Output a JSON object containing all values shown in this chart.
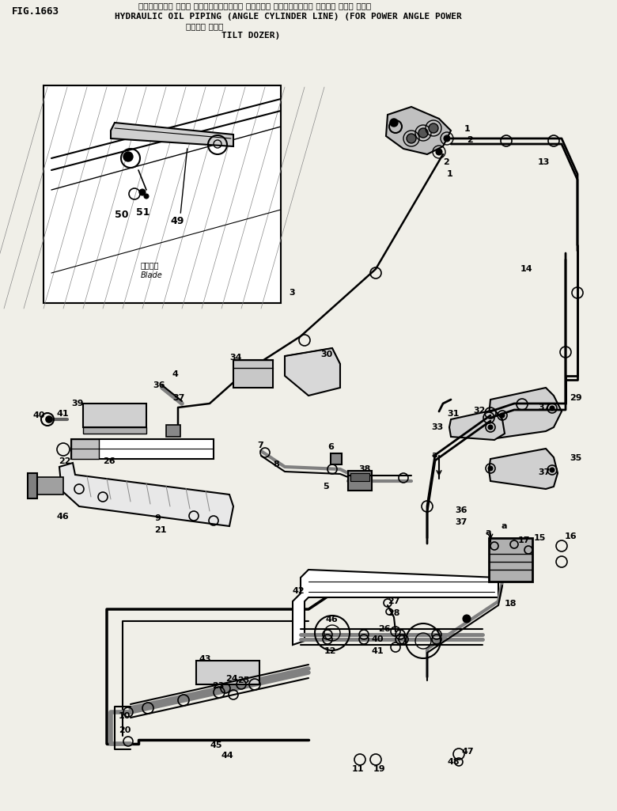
{
  "fig_number": "FIG.1663",
  "title_jp_line1": "ハイト・ロック オイル パイビング（アングル シリンダー ライン）（パワー アングル パワー チルト",
  "title_en_line1": "HYDRAULIC OIL PIPING (ANGLE CYLINDER LINE) (FOR POWER ANGLE POWER",
  "title_jp_line2": "トーザー ヨウ）",
  "title_en_line2": "TILT DOZER)",
  "bg_color": "#f0efe8",
  "lc": "#111111"
}
